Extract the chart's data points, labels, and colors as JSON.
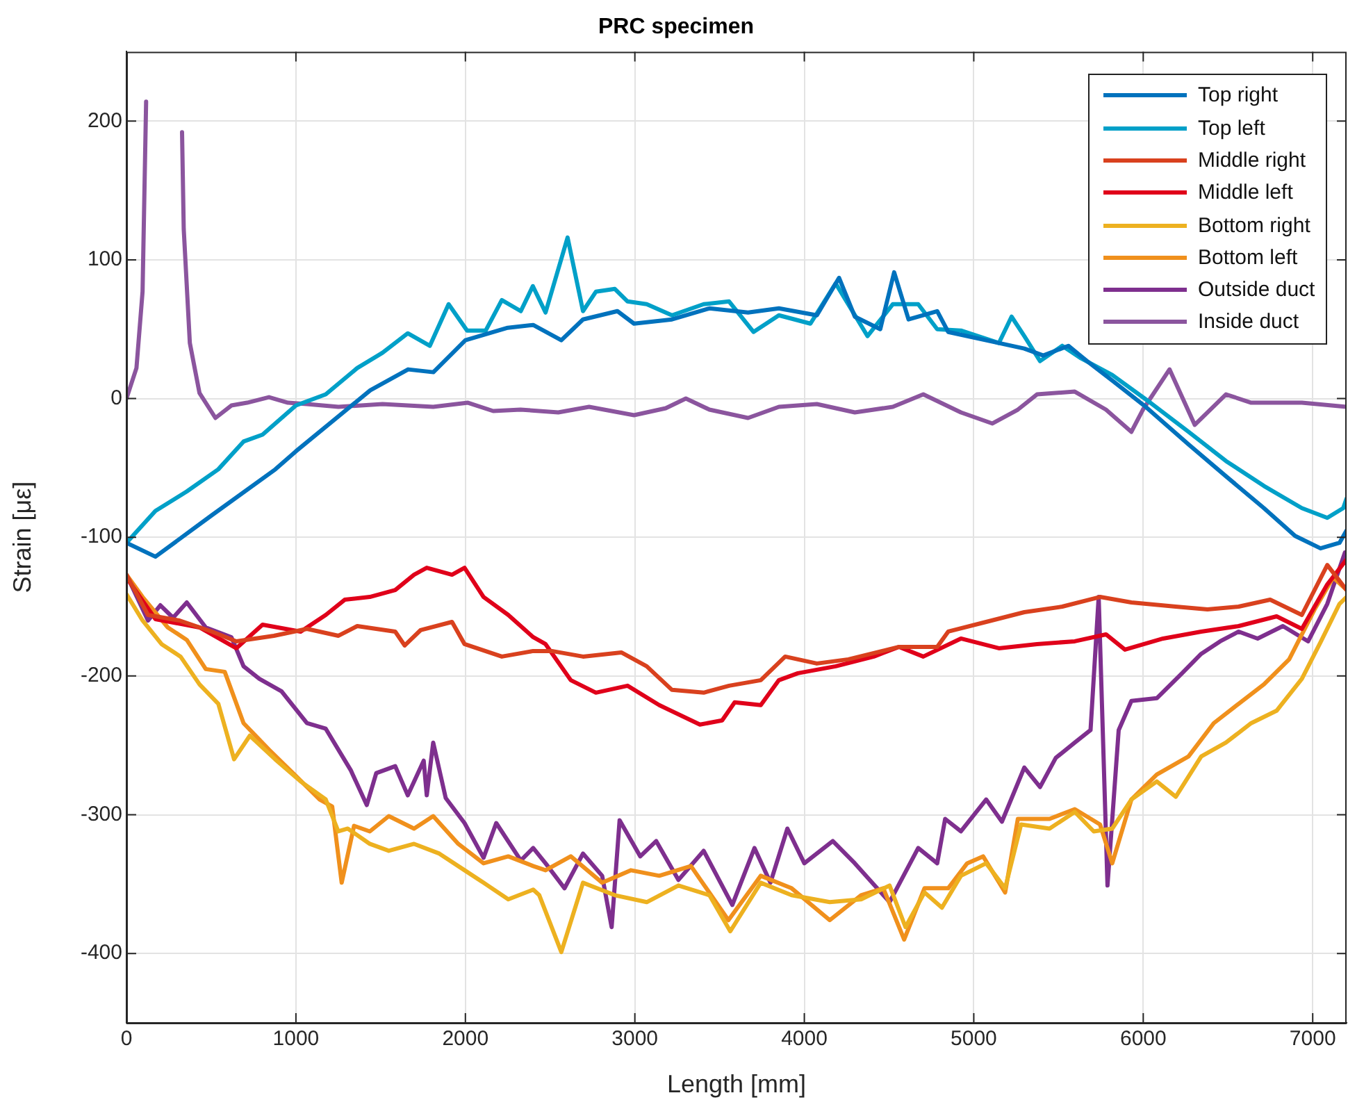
{
  "chart_data": {
    "type": "line",
    "title": "PRC specimen",
    "xlabel": "Length [mm]",
    "ylabel": "Strain [με]",
    "xlim": [
      0,
      7200
    ],
    "ylim": [
      -450,
      250
    ],
    "xticks": [
      0,
      1000,
      2000,
      3000,
      4000,
      5000,
      6000,
      7000
    ],
    "yticks": [
      -400,
      -300,
      -200,
      -100,
      0,
      100,
      200
    ],
    "grid": true,
    "legend": "top right",
    "line_style": "solid",
    "marker": "none",
    "series": [
      {
        "name": "Top right",
        "color": "#0072bd",
        "x": [
          0,
          171,
          505,
          879,
          1000,
          1439,
          1662,
          1811,
          2000,
          2250,
          2400,
          2566,
          2694,
          2897,
          2995,
          3219,
          3440,
          3668,
          3850,
          4074,
          4205,
          4298,
          4448,
          4530,
          4615,
          4784,
          4849,
          5110,
          5298,
          5410,
          5558,
          5668,
          5817,
          6005,
          6267,
          6488,
          6712,
          6896,
          7046,
          7158,
          7200
        ],
        "values": [
          -104,
          -114,
          -84,
          -51,
          -38,
          6,
          21,
          19,
          42,
          51,
          53,
          42,
          57,
          63,
          54,
          57,
          65,
          62,
          65,
          60,
          87,
          59,
          50,
          91,
          57,
          63,
          48,
          41,
          36,
          31,
          38,
          27,
          13,
          -5,
          -33,
          -56,
          -79,
          -99,
          -108,
          -104,
          -95
        ]
      },
      {
        "name": "Top left",
        "color": "#00a0c8",
        "x": [
          0,
          171,
          356,
          542,
          691,
          803,
          1000,
          1176,
          1362,
          1511,
          1660,
          1790,
          1901,
          2010,
          2120,
          2215,
          2327,
          2398,
          2473,
          2603,
          2694,
          2770,
          2882,
          2957,
          3070,
          3219,
          3406,
          3556,
          3700,
          3850,
          4036,
          4185,
          4373,
          4522,
          4672,
          4784,
          4924,
          5148,
          5223,
          5298,
          5391,
          5522,
          5633,
          5817,
          6042,
          6267,
          6488,
          6712,
          6936,
          7086,
          7180,
          7200
        ],
        "values": [
          -104,
          -81,
          -67,
          -51,
          -31,
          -26,
          -5,
          3,
          22,
          33,
          47,
          38,
          68,
          49,
          49,
          71,
          63,
          81,
          62,
          116,
          63,
          77,
          79,
          70,
          68,
          60,
          68,
          70,
          48,
          60,
          54,
          83,
          45,
          68,
          68,
          50,
          49,
          40,
          59,
          45,
          27,
          38,
          29,
          17,
          -3,
          -24,
          -45,
          -63,
          -79,
          -86,
          -79,
          -72
        ]
      },
      {
        "name": "Middle right",
        "color": "#d9411e",
        "x": [
          0,
          127,
          313,
          505,
          648,
          870,
          1065,
          1251,
          1362,
          1586,
          1642,
          1735,
          1921,
          1995,
          2215,
          2400,
          2510,
          2694,
          2920,
          3070,
          3219,
          3406,
          3556,
          3743,
          3887,
          4074,
          4260,
          4559,
          4784,
          4849,
          5073,
          5298,
          5522,
          5745,
          5930,
          6192,
          6379,
          6563,
          6749,
          6936,
          7086,
          7200
        ],
        "values": [
          -127,
          -156,
          -160,
          -168,
          -175,
          -171,
          -166,
          -171,
          -164,
          -168,
          -178,
          -167,
          -161,
          -177,
          -186,
          -182,
          -182,
          -186,
          -183,
          -193,
          -210,
          -212,
          -207,
          -203,
          -186,
          -191,
          -188,
          -179,
          -179,
          -168,
          -161,
          -154,
          -150,
          -143,
          -147,
          -150,
          -152,
          -150,
          -145,
          -156,
          -120,
          -138
        ]
      },
      {
        "name": "Middle left",
        "color": "#e0001a",
        "x": [
          0,
          171,
          431,
          648,
          803,
          1028,
          1176,
          1288,
          1436,
          1586,
          1697,
          1772,
          1921,
          1995,
          2107,
          2253,
          2400,
          2473,
          2622,
          2770,
          2957,
          3144,
          3384,
          3515,
          3589,
          3743,
          3850,
          3962,
          4185,
          4410,
          4559,
          4702,
          4924,
          5148,
          5373,
          5596,
          5780,
          5892,
          6117,
          6342,
          6563,
          6787,
          6936,
          7086,
          7200
        ],
        "values": [
          -129,
          -159,
          -165,
          -180,
          -163,
          -168,
          -156,
          -145,
          -143,
          -138,
          -127,
          -122,
          -127,
          -122,
          -143,
          -156,
          -172,
          -177,
          -203,
          -212,
          -207,
          -221,
          -235,
          -232,
          -219,
          -221,
          -203,
          -198,
          -193,
          -186,
          -179,
          -186,
          -173,
          -180,
          -177,
          -175,
          -170,
          -181,
          -173,
          -168,
          -164,
          -157,
          -166,
          -134,
          -116
        ]
      },
      {
        "name": "Bottom right",
        "color": "#edb120",
        "x": [
          0,
          95,
          207,
          319,
          431,
          542,
          635,
          728,
          877,
          1028,
          1176,
          1250,
          1306,
          1436,
          1548,
          1697,
          1846,
          1995,
          2107,
          2253,
          2400,
          2436,
          2566,
          2694,
          2882,
          3070,
          3257,
          3440,
          3563,
          3743,
          3925,
          4150,
          4335,
          4503,
          4597,
          4709,
          4812,
          4924,
          5073,
          5185,
          5279,
          5447,
          5596,
          5708,
          5817,
          5930,
          6080,
          6192,
          6342,
          6488,
          6637,
          6787,
          6936,
          7049,
          7158,
          7200
        ],
        "values": [
          -141,
          -160,
          -177,
          -186,
          -206,
          -220,
          -260,
          -243,
          -260,
          -276,
          -289,
          -312,
          -310,
          -321,
          -326,
          -321,
          -328,
          -340,
          -349,
          -361,
          -354,
          -358,
          -399,
          -349,
          -358,
          -363,
          -351,
          -358,
          -384,
          -349,
          -358,
          -363,
          -361,
          -351,
          -381,
          -356,
          -367,
          -344,
          -335,
          -353,
          -307,
          -310,
          -298,
          -312,
          -310,
          -289,
          -276,
          -287,
          -258,
          -248,
          -234,
          -225,
          -202,
          -175,
          -148,
          -143
        ]
      },
      {
        "name": "Bottom left",
        "color": "#f0901c",
        "x": [
          0,
          95,
          244,
          356,
          468,
          580,
          691,
          840,
          991,
          1140,
          1214,
          1270,
          1343,
          1436,
          1548,
          1697,
          1810,
          1958,
          2107,
          2253,
          2400,
          2473,
          2622,
          2807,
          2976,
          3144,
          3331,
          3552,
          3743,
          3925,
          4150,
          4335,
          4466,
          4589,
          4709,
          4849,
          4961,
          5055,
          5185,
          5260,
          5447,
          5596,
          5745,
          5817,
          5930,
          6080,
          6267,
          6416,
          6563,
          6712,
          6861,
          7011,
          7121,
          7200
        ],
        "values": [
          -127,
          -143,
          -165,
          -174,
          -195,
          -197,
          -234,
          -253,
          -271,
          -289,
          -294,
          -349,
          -308,
          -312,
          -301,
          -310,
          -301,
          -321,
          -335,
          -330,
          -337,
          -340,
          -330,
          -349,
          -340,
          -344,
          -337,
          -376,
          -344,
          -353,
          -376,
          -358,
          -353,
          -390,
          -353,
          -353,
          -335,
          -330,
          -356,
          -303,
          -303,
          -296,
          -307,
          -335,
          -289,
          -271,
          -258,
          -234,
          -220,
          -206,
          -188,
          -152,
          -129,
          -138
        ]
      },
      {
        "name": "Outside duct",
        "color": "#7e2f8e",
        "x": [
          0,
          127,
          200,
          275,
          356,
          468,
          619,
          691,
          784,
          915,
          1065,
          1176,
          1324,
          1418,
          1474,
          1586,
          1660,
          1754,
          1772,
          1810,
          1884,
          1995,
          2107,
          2182,
          2327,
          2400,
          2473,
          2585,
          2694,
          2807,
          2863,
          2910,
          3032,
          3126,
          3257,
          3406,
          3575,
          3706,
          3800,
          3900,
          4000,
          4168,
          4298,
          4503,
          4672,
          4784,
          4831,
          4924,
          5073,
          5166,
          5298,
          5391,
          5484,
          5596,
          5689,
          5737,
          5789,
          5855,
          5930,
          6080,
          6229,
          6342,
          6454,
          6563,
          6675,
          6824,
          6973,
          7086,
          7190
        ],
        "values": [
          -127,
          -160,
          -149,
          -158,
          -147,
          -165,
          -172,
          -193,
          -202,
          -211,
          -234,
          -238,
          -268,
          -293,
          -270,
          -265,
          -286,
          -261,
          -286,
          -248,
          -288,
          -306,
          -331,
          -306,
          -333,
          -324,
          -335,
          -353,
          -328,
          -344,
          -381,
          -304,
          -330,
          -319,
          -347,
          -326,
          -365,
          -324,
          -349,
          -310,
          -335,
          -319,
          -335,
          -363,
          -324,
          -335,
          -303,
          -312,
          -289,
          -305,
          -266,
          -280,
          -259,
          -248,
          -239,
          -143,
          -351,
          -239,
          -218,
          -216,
          -198,
          -184,
          -175,
          -168,
          -173,
          -164,
          -175,
          -148,
          -111
        ]
      },
      {
        "name": "Inside duct",
        "color": "#8b559e",
        "x": [
          0,
          59,
          95,
          116,
          220,
          328,
          338,
          374,
          431,
          525,
          619,
          712,
          841,
          953,
          1065,
          1251,
          1511,
          1810,
          2015,
          2164,
          2325,
          2548,
          2730,
          2995,
          3182,
          3301,
          3440,
          3668,
          3850,
          4074,
          4298,
          4522,
          4702,
          4924,
          5110,
          5260,
          5373,
          5596,
          5780,
          5930,
          5998,
          6155,
          6304,
          6488,
          6637,
          6936,
          7200
        ],
        "values": [
          0,
          22,
          77,
          214,
          null,
          192,
          122,
          40,
          4,
          -14,
          -5,
          -3,
          1,
          -3,
          -4,
          -6,
          -4,
          -6,
          -3,
          -9,
          -8,
          -10,
          -6,
          -12,
          -7,
          0,
          -8,
          -14,
          -6,
          -4,
          -10,
          -6,
          3,
          -10,
          -18,
          -8,
          3,
          5,
          -8,
          -24,
          -8,
          21,
          -19,
          3,
          -3,
          -3,
          -6
        ]
      }
    ]
  }
}
